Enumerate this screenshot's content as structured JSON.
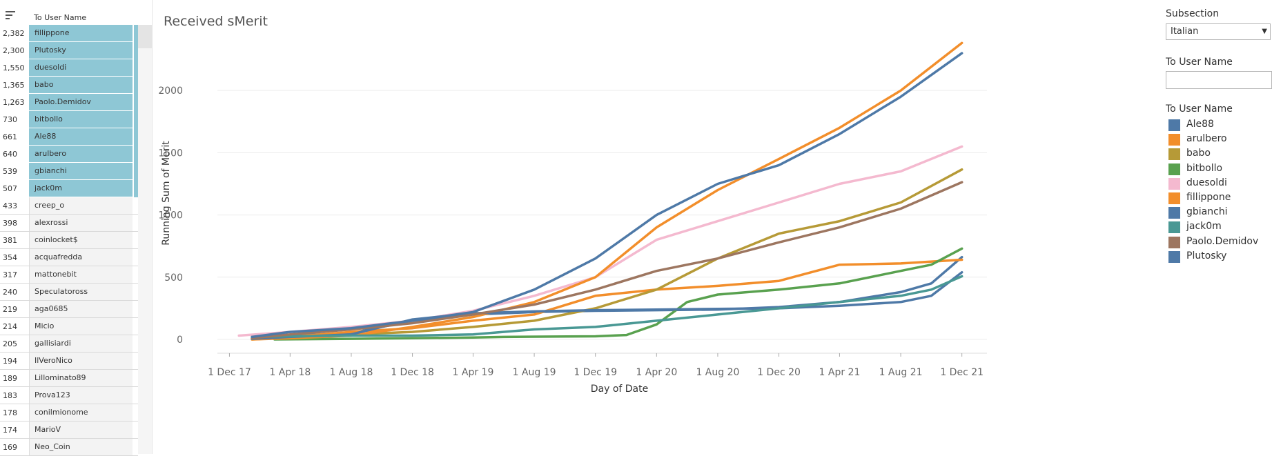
{
  "left_table": {
    "header": "To User Name",
    "rows": [
      {
        "value": "2,382",
        "name": "fillippone",
        "selected": true
      },
      {
        "value": "2,300",
        "name": "Plutosky",
        "selected": true
      },
      {
        "value": "1,550",
        "name": "duesoldi",
        "selected": true
      },
      {
        "value": "1,365",
        "name": "babo",
        "selected": true
      },
      {
        "value": "1,263",
        "name": "Paolo.Demidov",
        "selected": true
      },
      {
        "value": "730",
        "name": "bitbollo",
        "selected": true
      },
      {
        "value": "661",
        "name": "Ale88",
        "selected": true
      },
      {
        "value": "640",
        "name": "arulbero",
        "selected": true
      },
      {
        "value": "539",
        "name": "gbianchi",
        "selected": true
      },
      {
        "value": "507",
        "name": "jack0m",
        "selected": true
      },
      {
        "value": "433",
        "name": "creep_o",
        "selected": false
      },
      {
        "value": "398",
        "name": "alexrossi",
        "selected": false
      },
      {
        "value": "381",
        "name": "coinlocket$",
        "selected": false
      },
      {
        "value": "354",
        "name": "acquafredda",
        "selected": false
      },
      {
        "value": "317",
        "name": "mattonebit",
        "selected": false
      },
      {
        "value": "240",
        "name": "Speculatoross",
        "selected": false
      },
      {
        "value": "219",
        "name": "aga0685",
        "selected": false
      },
      {
        "value": "214",
        "name": "Micio",
        "selected": false
      },
      {
        "value": "205",
        "name": "gallisiardi",
        "selected": false
      },
      {
        "value": "194",
        "name": "IlVeroNico",
        "selected": false
      },
      {
        "value": "189",
        "name": "Lillominato89",
        "selected": false
      },
      {
        "value": "183",
        "name": "Prova123",
        "selected": false
      },
      {
        "value": "178",
        "name": "conilmionome",
        "selected": false
      },
      {
        "value": "174",
        "name": "MarioV",
        "selected": false
      },
      {
        "value": "169",
        "name": "Neo_Coin",
        "selected": false
      }
    ]
  },
  "filters": {
    "subsection_title": "Subsection",
    "subsection_value": "Italian",
    "user_filter_title": "To User Name",
    "user_filter_value": "",
    "legend_title": "To User Name"
  },
  "colors": {
    "selected_row": "#8ec7d5",
    "Ale88": "#4e79a7",
    "arulbero": "#f28e2b",
    "babo": "#b69a37",
    "bitbollo": "#59a14f",
    "duesoldi": "#f4b9cf",
    "fillippone": "#f28e2b",
    "gbianchi": "#4e79a7",
    "jack0m": "#499894",
    "Paolo.Demidov": "#9d7660",
    "Plutosky": "#4e79a7"
  },
  "chart_data": {
    "type": "line",
    "title": "Received sMerit",
    "xlabel": "Day of Date",
    "ylabel": "Running Sum of Merit",
    "x_ticks": [
      "1 Dec 17",
      "1 Apr 18",
      "1 Aug 18",
      "1 Dec 18",
      "1 Apr 19",
      "1 Aug 19",
      "1 Dec 19",
      "1 Apr 20",
      "1 Aug 20",
      "1 Dec 20",
      "1 Apr 21",
      "1 Aug 21",
      "1 Dec 21"
    ],
    "y_ticks": [
      0,
      500,
      1000,
      1500,
      2000
    ],
    "ylim": [
      -100,
      2450
    ],
    "grid": true,
    "legend_position": "right",
    "series": [
      {
        "name": "Ale88",
        "color": "#4e79a7",
        "points": [
          [
            "2018-01-15",
            10
          ],
          [
            "2018-04-01",
            30
          ],
          [
            "2018-08-01",
            50
          ],
          [
            "2018-12-01",
            150
          ],
          [
            "2019-04-01",
            200
          ],
          [
            "2019-08-01",
            220
          ],
          [
            "2019-12-01",
            230
          ],
          [
            "2020-04-01",
            235
          ],
          [
            "2020-08-01",
            240
          ],
          [
            "2020-12-01",
            260
          ],
          [
            "2021-04-01",
            300
          ],
          [
            "2021-08-01",
            380
          ],
          [
            "2021-10-01",
            450
          ],
          [
            "2021-12-01",
            661
          ]
        ]
      },
      {
        "name": "arulbero",
        "color": "#f28e2b",
        "points": [
          [
            "2018-01-15",
            5
          ],
          [
            "2018-04-01",
            20
          ],
          [
            "2018-08-01",
            60
          ],
          [
            "2018-12-01",
            90
          ],
          [
            "2019-04-01",
            150
          ],
          [
            "2019-08-01",
            200
          ],
          [
            "2019-12-01",
            350
          ],
          [
            "2020-04-01",
            400
          ],
          [
            "2020-08-01",
            430
          ],
          [
            "2020-12-01",
            470
          ],
          [
            "2021-04-01",
            600
          ],
          [
            "2021-08-01",
            610
          ],
          [
            "2021-12-01",
            640
          ]
        ]
      },
      {
        "name": "babo",
        "color": "#b69a37",
        "points": [
          [
            "2018-01-15",
            0
          ],
          [
            "2018-04-01",
            15
          ],
          [
            "2018-08-01",
            40
          ],
          [
            "2018-12-01",
            60
          ],
          [
            "2019-04-01",
            100
          ],
          [
            "2019-08-01",
            150
          ],
          [
            "2019-12-01",
            250
          ],
          [
            "2020-04-01",
            400
          ],
          [
            "2020-08-01",
            650
          ],
          [
            "2020-12-01",
            850
          ],
          [
            "2021-04-01",
            950
          ],
          [
            "2021-08-01",
            1100
          ],
          [
            "2021-12-01",
            1365
          ]
        ]
      },
      {
        "name": "bitbollo",
        "color": "#59a14f",
        "points": [
          [
            "2018-03-01",
            0
          ],
          [
            "2018-08-01",
            5
          ],
          [
            "2018-12-01",
            10
          ],
          [
            "2019-04-01",
            15
          ],
          [
            "2019-06-01",
            20
          ],
          [
            "2019-12-01",
            25
          ],
          [
            "2020-02-01",
            35
          ],
          [
            "2020-04-01",
            120
          ],
          [
            "2020-06-01",
            300
          ],
          [
            "2020-08-01",
            360
          ],
          [
            "2020-12-01",
            400
          ],
          [
            "2021-04-01",
            450
          ],
          [
            "2021-08-01",
            550
          ],
          [
            "2021-10-01",
            600
          ],
          [
            "2021-12-01",
            730
          ]
        ]
      },
      {
        "name": "duesoldi",
        "color": "#f4b9cf",
        "points": [
          [
            "2017-12-20",
            30
          ],
          [
            "2018-04-01",
            60
          ],
          [
            "2018-08-01",
            100
          ],
          [
            "2018-12-01",
            150
          ],
          [
            "2019-04-01",
            230
          ],
          [
            "2019-08-01",
            350
          ],
          [
            "2019-12-01",
            500
          ],
          [
            "2020-04-01",
            800
          ],
          [
            "2020-08-01",
            950
          ],
          [
            "2020-12-01",
            1100
          ],
          [
            "2021-04-01",
            1250
          ],
          [
            "2021-08-01",
            1350
          ],
          [
            "2021-12-01",
            1550
          ]
        ]
      },
      {
        "name": "fillippone",
        "color": "#f28e2b",
        "points": [
          [
            "2018-01-15",
            0
          ],
          [
            "2018-04-01",
            10
          ],
          [
            "2018-08-01",
            30
          ],
          [
            "2018-12-01",
            100
          ],
          [
            "2019-04-01",
            180
          ],
          [
            "2019-08-01",
            300
          ],
          [
            "2019-12-01",
            500
          ],
          [
            "2020-04-01",
            900
          ],
          [
            "2020-08-01",
            1200
          ],
          [
            "2020-12-01",
            1450
          ],
          [
            "2021-04-01",
            1700
          ],
          [
            "2021-08-01",
            2000
          ],
          [
            "2021-12-01",
            2382
          ]
        ]
      },
      {
        "name": "gbianchi",
        "color": "#4e79a7",
        "points": [
          [
            "2018-01-15",
            5
          ],
          [
            "2018-04-01",
            20
          ],
          [
            "2018-08-01",
            40
          ],
          [
            "2018-12-01",
            160
          ],
          [
            "2019-04-01",
            210
          ],
          [
            "2019-08-01",
            225
          ],
          [
            "2019-12-01",
            235
          ],
          [
            "2020-04-01",
            240
          ],
          [
            "2020-08-01",
            245
          ],
          [
            "2020-12-01",
            250
          ],
          [
            "2021-04-01",
            270
          ],
          [
            "2021-08-01",
            300
          ],
          [
            "2021-10-01",
            350
          ],
          [
            "2021-12-01",
            539
          ]
        ]
      },
      {
        "name": "jack0m",
        "color": "#499894",
        "points": [
          [
            "2018-01-15",
            20
          ],
          [
            "2018-04-01",
            25
          ],
          [
            "2018-08-01",
            30
          ],
          [
            "2018-12-01",
            30
          ],
          [
            "2019-04-01",
            40
          ],
          [
            "2019-08-01",
            80
          ],
          [
            "2019-12-01",
            100
          ],
          [
            "2020-04-01",
            150
          ],
          [
            "2020-08-01",
            200
          ],
          [
            "2020-12-01",
            250
          ],
          [
            "2021-04-01",
            300
          ],
          [
            "2021-08-01",
            350
          ],
          [
            "2021-10-01",
            400
          ],
          [
            "2021-12-01",
            507
          ]
        ]
      },
      {
        "name": "Paolo.Demidov",
        "color": "#9d7660",
        "points": [
          [
            "2018-01-15",
            10
          ],
          [
            "2018-04-01",
            40
          ],
          [
            "2018-08-01",
            80
          ],
          [
            "2018-12-01",
            130
          ],
          [
            "2019-04-01",
            200
          ],
          [
            "2019-08-01",
            280
          ],
          [
            "2019-12-01",
            400
          ],
          [
            "2020-04-01",
            550
          ],
          [
            "2020-08-01",
            650
          ],
          [
            "2020-12-01",
            780
          ],
          [
            "2021-04-01",
            900
          ],
          [
            "2021-08-01",
            1050
          ],
          [
            "2021-12-01",
            1263
          ]
        ]
      },
      {
        "name": "Plutosky",
        "color": "#4e79a7",
        "points": [
          [
            "2018-01-15",
            20
          ],
          [
            "2018-04-01",
            60
          ],
          [
            "2018-08-01",
            90
          ],
          [
            "2018-12-01",
            150
          ],
          [
            "2019-04-01",
            220
          ],
          [
            "2019-08-01",
            400
          ],
          [
            "2019-12-01",
            650
          ],
          [
            "2020-04-01",
            1000
          ],
          [
            "2020-08-01",
            1250
          ],
          [
            "2020-12-01",
            1400
          ],
          [
            "2021-04-01",
            1650
          ],
          [
            "2021-08-01",
            1950
          ],
          [
            "2021-12-01",
            2300
          ]
        ]
      }
    ]
  }
}
